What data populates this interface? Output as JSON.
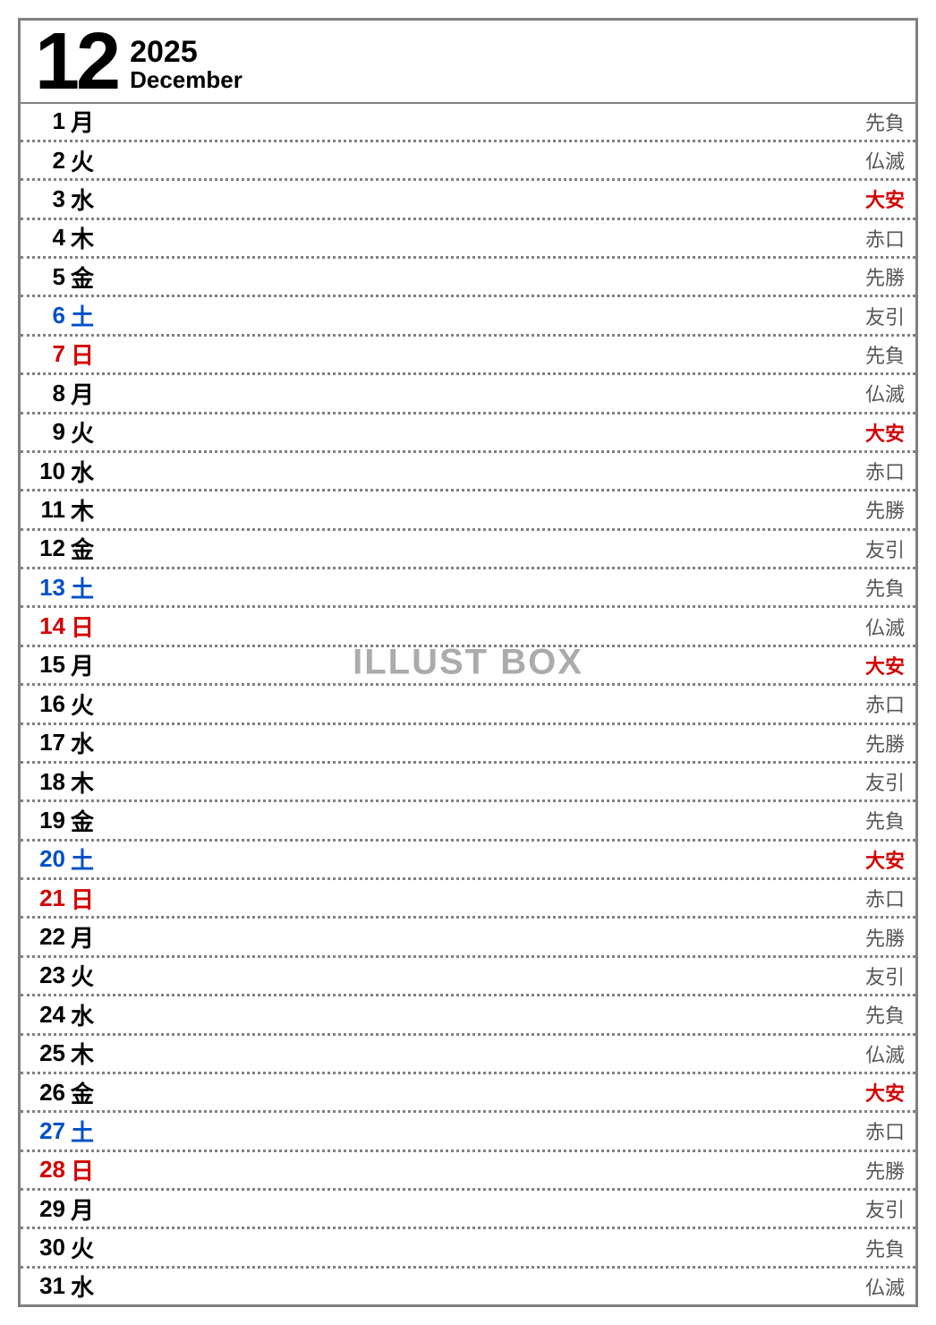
{
  "header": {
    "month_number": "12",
    "year": "2025",
    "month_name": "December"
  },
  "watermark": "ILLUST BOX",
  "colors": {
    "weekday": "#000000",
    "saturday": "#0050c8",
    "sunday": "#d40000",
    "rokuyo_normal": "#555555",
    "rokuyo_highlight": "#d40000",
    "border": "#808080"
  },
  "days": [
    {
      "num": "1",
      "dow": "月",
      "dow_color": "black",
      "rokuyo": "先負",
      "rokuyo_hl": false
    },
    {
      "num": "2",
      "dow": "火",
      "dow_color": "black",
      "rokuyo": "仏滅",
      "rokuyo_hl": false
    },
    {
      "num": "3",
      "dow": "水",
      "dow_color": "black",
      "rokuyo": "大安",
      "rokuyo_hl": true
    },
    {
      "num": "4",
      "dow": "木",
      "dow_color": "black",
      "rokuyo": "赤口",
      "rokuyo_hl": false
    },
    {
      "num": "5",
      "dow": "金",
      "dow_color": "black",
      "rokuyo": "先勝",
      "rokuyo_hl": false
    },
    {
      "num": "6",
      "dow": "土",
      "dow_color": "blue",
      "rokuyo": "友引",
      "rokuyo_hl": false
    },
    {
      "num": "7",
      "dow": "日",
      "dow_color": "red",
      "rokuyo": "先負",
      "rokuyo_hl": false
    },
    {
      "num": "8",
      "dow": "月",
      "dow_color": "black",
      "rokuyo": "仏滅",
      "rokuyo_hl": false
    },
    {
      "num": "9",
      "dow": "火",
      "dow_color": "black",
      "rokuyo": "大安",
      "rokuyo_hl": true
    },
    {
      "num": "10",
      "dow": "水",
      "dow_color": "black",
      "rokuyo": "赤口",
      "rokuyo_hl": false
    },
    {
      "num": "11",
      "dow": "木",
      "dow_color": "black",
      "rokuyo": "先勝",
      "rokuyo_hl": false
    },
    {
      "num": "12",
      "dow": "金",
      "dow_color": "black",
      "rokuyo": "友引",
      "rokuyo_hl": false
    },
    {
      "num": "13",
      "dow": "土",
      "dow_color": "blue",
      "rokuyo": "先負",
      "rokuyo_hl": false
    },
    {
      "num": "14",
      "dow": "日",
      "dow_color": "red",
      "rokuyo": "仏滅",
      "rokuyo_hl": false
    },
    {
      "num": "15",
      "dow": "月",
      "dow_color": "black",
      "rokuyo": "大安",
      "rokuyo_hl": true
    },
    {
      "num": "16",
      "dow": "火",
      "dow_color": "black",
      "rokuyo": "赤口",
      "rokuyo_hl": false
    },
    {
      "num": "17",
      "dow": "水",
      "dow_color": "black",
      "rokuyo": "先勝",
      "rokuyo_hl": false
    },
    {
      "num": "18",
      "dow": "木",
      "dow_color": "black",
      "rokuyo": "友引",
      "rokuyo_hl": false
    },
    {
      "num": "19",
      "dow": "金",
      "dow_color": "black",
      "rokuyo": "先負",
      "rokuyo_hl": false
    },
    {
      "num": "20",
      "dow": "土",
      "dow_color": "blue",
      "rokuyo": "大安",
      "rokuyo_hl": true
    },
    {
      "num": "21",
      "dow": "日",
      "dow_color": "red",
      "rokuyo": "赤口",
      "rokuyo_hl": false
    },
    {
      "num": "22",
      "dow": "月",
      "dow_color": "black",
      "rokuyo": "先勝",
      "rokuyo_hl": false
    },
    {
      "num": "23",
      "dow": "火",
      "dow_color": "black",
      "rokuyo": "友引",
      "rokuyo_hl": false
    },
    {
      "num": "24",
      "dow": "水",
      "dow_color": "black",
      "rokuyo": "先負",
      "rokuyo_hl": false
    },
    {
      "num": "25",
      "dow": "木",
      "dow_color": "black",
      "rokuyo": "仏滅",
      "rokuyo_hl": false
    },
    {
      "num": "26",
      "dow": "金",
      "dow_color": "black",
      "rokuyo": "大安",
      "rokuyo_hl": true
    },
    {
      "num": "27",
      "dow": "土",
      "dow_color": "blue",
      "rokuyo": "赤口",
      "rokuyo_hl": false
    },
    {
      "num": "28",
      "dow": "日",
      "dow_color": "red",
      "rokuyo": "先勝",
      "rokuyo_hl": false
    },
    {
      "num": "29",
      "dow": "月",
      "dow_color": "black",
      "rokuyo": "友引",
      "rokuyo_hl": false
    },
    {
      "num": "30",
      "dow": "火",
      "dow_color": "black",
      "rokuyo": "先負",
      "rokuyo_hl": false
    },
    {
      "num": "31",
      "dow": "水",
      "dow_color": "black",
      "rokuyo": "仏滅",
      "rokuyo_hl": false
    }
  ]
}
